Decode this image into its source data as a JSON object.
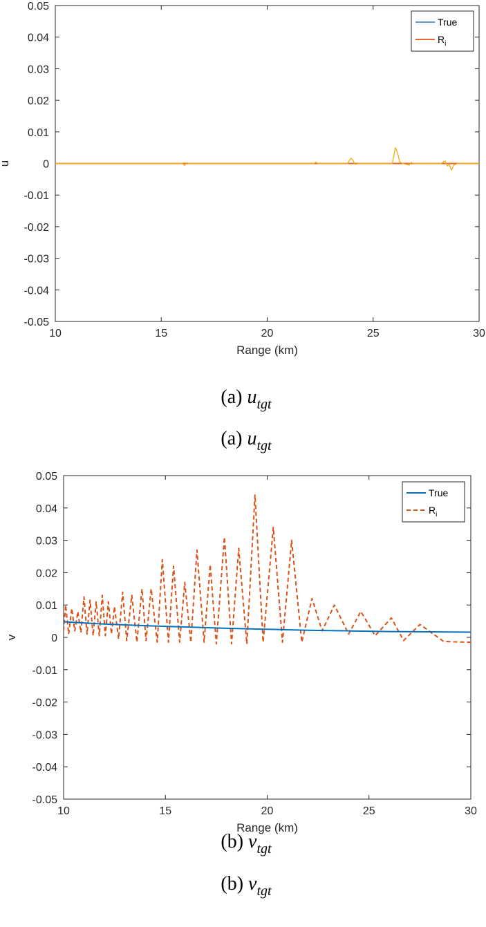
{
  "charts": [
    {
      "id": "u",
      "caption": {
        "prefix": "(a)",
        "var": "u",
        "sub": "tgt"
      },
      "chart_data": {
        "type": "line",
        "title": "",
        "xlabel": "Range (km)",
        "ylabel": "u",
        "xlim": [
          10,
          30
        ],
        "ylim": [
          -0.05,
          0.05
        ],
        "xticks": [
          "10",
          "15",
          "20",
          "25",
          "30"
        ],
        "yticks": [
          "0.05",
          "0.04",
          "0.03",
          "0.02",
          "0.01",
          "0",
          "-0.01",
          "-0.02",
          "-0.03",
          "-0.04",
          "-0.05"
        ],
        "grid": false,
        "legend_position": "top-right",
        "series": [
          {
            "name": "True",
            "color": "#5b9bd5",
            "style": "solid",
            "x": [
              10,
              30
            ],
            "y": [
              0,
              0
            ]
          },
          {
            "name": "R",
            "name_sub": "i",
            "color": "#e8692c",
            "style": "solid",
            "x": [
              10,
              30
            ],
            "y": [
              0,
              0
            ]
          },
          {
            "name": "",
            "color": "#f2b21b",
            "style": "solid",
            "x": [
              10,
              16,
              16.1,
              16.2,
              16.3,
              22.2,
              22.3,
              22.4,
              23.8,
              23.95,
              24.05,
              24.15,
              24.3,
              25.9,
              26.05,
              26.15,
              26.25,
              26.4,
              26.7,
              26.8,
              26.9,
              28.2,
              28.4,
              28.5,
              28.6,
              28.7,
              28.8,
              29.0,
              30
            ],
            "y": [
              0,
              0,
              -0.0006,
              0.0002,
              0,
              0,
              0.0004,
              0,
              0,
              0.0017,
              0.001,
              -0.0003,
              0,
              0,
              0.005,
              0.0035,
              0.0005,
              0,
              -0.0005,
              0.0003,
              0,
              0,
              0.0008,
              -0.0008,
              -0.0002,
              -0.0022,
              -0.0005,
              0,
              0
            ]
          }
        ]
      }
    },
    {
      "id": "v",
      "caption": {
        "prefix": "(b)",
        "var": "v",
        "sub": "tgt"
      },
      "chart_data": {
        "type": "line",
        "title": "",
        "xlabel": "Range (km)",
        "ylabel": "v",
        "xlim": [
          10,
          30
        ],
        "ylim": [
          -0.05,
          0.05
        ],
        "xticks": [
          "10",
          "15",
          "20",
          "25",
          "30"
        ],
        "yticks": [
          "0.05",
          "0.04",
          "0.03",
          "0.02",
          "0.01",
          "0",
          "-0.01",
          "-0.02",
          "-0.03",
          "-0.04",
          "-0.05"
        ],
        "grid": false,
        "legend_position": "top-right",
        "series": [
          {
            "name": "True",
            "color": "#0072bd",
            "style": "solid",
            "x": [
              10,
              12,
              14,
              16,
              18,
              20,
              22,
              24,
              26,
              28,
              30
            ],
            "y": [
              0.0048,
              0.0041,
              0.0036,
              0.0032,
              0.0028,
              0.0025,
              0.0022,
              0.002,
              0.0018,
              0.0017,
              0.0016
            ]
          },
          {
            "name": "R",
            "name_sub": "i",
            "color": "#d95319",
            "style": "dashed",
            "x": [
              10,
              10.1,
              10.25,
              10.4,
              10.55,
              10.7,
              10.85,
              11.0,
              11.15,
              11.3,
              11.45,
              11.6,
              11.75,
              11.9,
              12.05,
              12.2,
              12.35,
              12.5,
              12.7,
              12.9,
              13.1,
              13.35,
              13.6,
              13.85,
              14.05,
              14.3,
              14.6,
              14.85,
              15.15,
              15.4,
              15.7,
              15.95,
              16.25,
              16.55,
              16.9,
              17.2,
              17.5,
              17.9,
              18.25,
              18.6,
              19.0,
              19.4,
              19.8,
              20.3,
              20.75,
              21.2,
              21.7,
              22.2,
              22.7,
              23.3,
              24.0,
              24.6,
              25.3,
              26.1,
              26.7,
              27.5,
              28.65,
              29.2,
              30
            ],
            "y": [
              0.002,
              0.01,
              0.001,
              0.009,
              0.002,
              0.008,
              0.0015,
              0.0125,
              0.001,
              0.0115,
              0.0005,
              0.011,
              0.0005,
              0.013,
              0.0005,
              0.011,
              0.001,
              0.0095,
              -0.0005,
              0.014,
              -0.001,
              0.013,
              -0.0015,
              0.015,
              -0.001,
              0.015,
              -0.0015,
              0.024,
              -0.0015,
              0.022,
              -0.0015,
              0.017,
              -0.0015,
              0.027,
              -0.0015,
              0.0225,
              -0.002,
              0.031,
              -0.002,
              0.0275,
              -0.002,
              0.044,
              -0.0015,
              0.034,
              -0.0015,
              0.03,
              -0.0015,
              0.012,
              0.002,
              0.01,
              0.001,
              0.008,
              0.0005,
              0.006,
              -0.001,
              0.004,
              -0.0012,
              -0.0014,
              -0.0015
            ]
          }
        ]
      }
    }
  ]
}
